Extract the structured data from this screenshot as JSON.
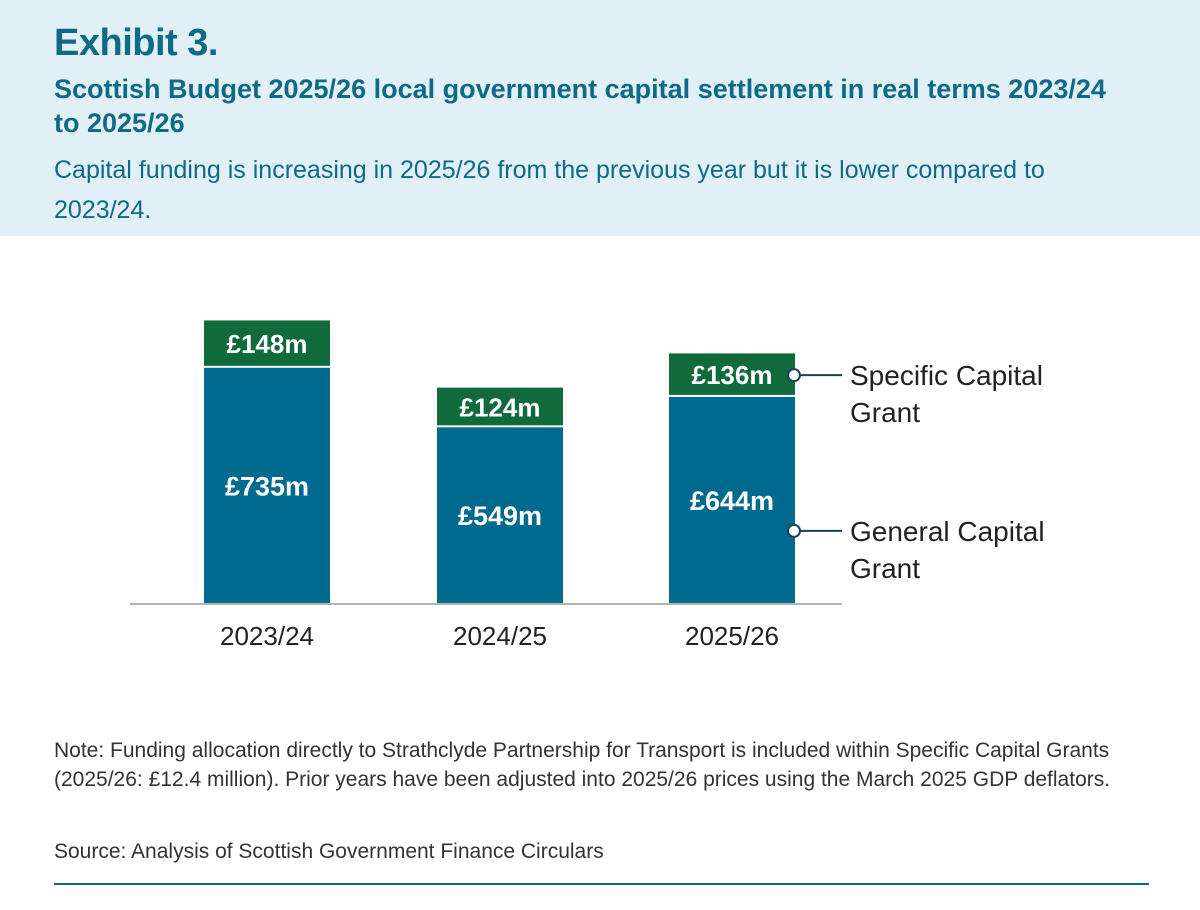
{
  "header": {
    "exhibit": "Exhibit 3.",
    "title": "Scottish Budget 2025/26 local government capital settlement in real terms 2023/24 to 2025/26",
    "subtitle": "Capital funding is increasing in 2025/26 from the previous year but it is lower compared to 2023/24."
  },
  "chart_data": {
    "type": "bar",
    "stacked": true,
    "categories": [
      "2023/24",
      "2024/25",
      "2025/26"
    ],
    "series": [
      {
        "name": "General Capital Grant",
        "values": [
          735,
          549,
          644
        ],
        "labels": [
          "£735m",
          "£549m",
          "£644m"
        ],
        "color": "#006a8e"
      },
      {
        "name": "Specific Capital Grant",
        "values": [
          148,
          124,
          136
        ],
        "labels": [
          "£148m",
          "£124m",
          "£136m"
        ],
        "color": "#106a3c"
      }
    ],
    "legend_placement": "right (labels attached to last bar)",
    "ylim": [
      0,
      900
    ],
    "grid": false,
    "axis_color": "#b3b3b3"
  },
  "footer": {
    "note": "Note: Funding allocation directly to Strathclyde Partnership for Transport is included within Specific Capital Grants (2025/26: £12.4 million). Prior years have been adjusted into 2025/26 prices using the March 2025 GDP deflators.",
    "source": "Source: Analysis of Scottish Government Finance Circulars"
  }
}
